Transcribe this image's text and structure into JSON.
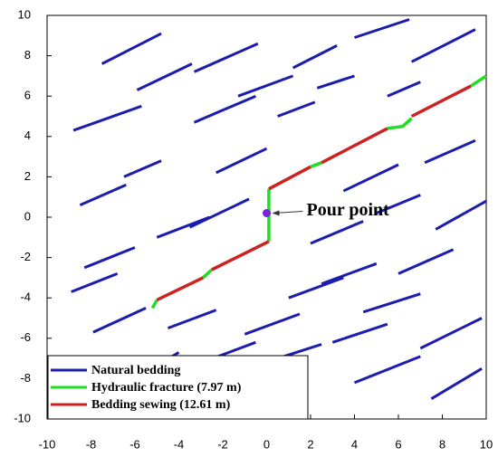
{
  "chart_data": {
    "type": "line",
    "xlim": [
      -10,
      10
    ],
    "ylim": [
      -10,
      10
    ],
    "xticks": [
      -10,
      -8,
      -6,
      -4,
      -2,
      0,
      2,
      4,
      6,
      8,
      10
    ],
    "yticks": [
      -10,
      -8,
      -6,
      -4,
      -2,
      0,
      2,
      4,
      6,
      8,
      10
    ],
    "grid": false,
    "legend": "lower left",
    "series": [
      {
        "name": "Natural bedding",
        "color": "#1c1cae",
        "x": [
          -7.5,
          -4.8,
          null,
          -3.3,
          -0.4,
          null,
          1.2,
          3.2,
          null,
          4.0,
          6.5,
          null,
          6.6,
          9.5,
          null,
          -5.9,
          -3.4,
          null,
          -1.3,
          1.2,
          null,
          2.3,
          4.0,
          null,
          5.5,
          7.0,
          null,
          -8.8,
          -5.7,
          null,
          -3.3,
          -0.5,
          null,
          0.5,
          2.2,
          null,
          -6.5,
          -4.8,
          null,
          -2.3,
          0.0,
          null,
          3.5,
          6.0,
          null,
          7.2,
          9.5,
          null,
          -8.5,
          -6.4,
          null,
          -3.5,
          -0.8,
          null,
          2.0,
          4.4,
          null,
          5.0,
          7.0,
          null,
          7.7,
          10.0,
          null,
          -8.3,
          -6.0,
          null,
          -5.0,
          -2.6,
          null,
          2.5,
          5.0,
          null,
          6.0,
          8.5,
          null,
          -8.9,
          -6.8,
          null,
          -7.9,
          -5.5,
          null,
          1.0,
          3.5,
          null,
          4.4,
          7.0,
          null,
          -4.5,
          -2.3,
          null,
          -1.0,
          1.5,
          null,
          3.0,
          5.5,
          null,
          7.0,
          9.8,
          null,
          -3.2,
          -0.5,
          null,
          0.5,
          2.5,
          null,
          4.0,
          7.0,
          null,
          7.5,
          9.8,
          null,
          -6.0,
          -4.0
        ],
        "values": [
          7.6,
          9.1,
          null,
          7.2,
          8.6,
          null,
          7.4,
          8.5,
          null,
          8.9,
          9.8,
          null,
          7.7,
          9.3,
          null,
          6.3,
          7.6,
          null,
          6.0,
          7.0,
          null,
          6.4,
          7.0,
          null,
          6.0,
          6.7,
          null,
          4.3,
          5.5,
          null,
          4.7,
          6.0,
          null,
          5.0,
          5.7,
          null,
          2.0,
          2.8,
          null,
          2.2,
          3.4,
          null,
          1.3,
          2.6,
          null,
          2.7,
          3.8,
          null,
          0.6,
          1.6,
          null,
          -0.5,
          0.9,
          null,
          -1.3,
          -0.2,
          null,
          0.2,
          1.1,
          null,
          -0.6,
          0.8,
          null,
          -2.5,
          -1.5,
          null,
          -1.0,
          0.0,
          null,
          -3.3,
          -2.3,
          null,
          -2.8,
          -1.6,
          null,
          -3.7,
          -2.8,
          null,
          -5.7,
          -4.5,
          null,
          -4.0,
          -3.0,
          null,
          -4.7,
          -3.8,
          null,
          -5.5,
          -4.6,
          null,
          -5.8,
          -4.8,
          null,
          -6.2,
          -5.3,
          null,
          -6.5,
          -5.0,
          null,
          -7.3,
          -6.2,
          null,
          -7.0,
          -6.3,
          null,
          -8.2,
          -6.9,
          null,
          -9.0,
          -7.5,
          null,
          -8.0,
          -6.7
        ]
      },
      {
        "name": "Hydraulic fracture (7.97 m)",
        "color": "#22dd22",
        "x": [
          -5.2,
          -5.0,
          null,
          -2.9,
          -2.5,
          null,
          0.1,
          0.1,
          0.1,
          null,
          2.0,
          2.5,
          null,
          5.5,
          6.2,
          6.6,
          null,
          9.3,
          10.0
        ],
        "values": [
          -4.5,
          -4.1,
          null,
          -3.0,
          -2.6,
          null,
          -1.2,
          0.2,
          1.4,
          null,
          2.5,
          2.7,
          null,
          4.4,
          4.5,
          4.9,
          null,
          6.5,
          7.0
        ]
      },
      {
        "name": "Bedding sewing (12.61 m)",
        "color": "#cc2222",
        "x": [
          -5.0,
          -2.9,
          null,
          -2.5,
          0.1,
          null,
          0.1,
          2.0,
          null,
          2.5,
          5.5,
          null,
          6.6,
          9.3
        ],
        "values": [
          -4.1,
          -3.0,
          null,
          -2.6,
          -1.2,
          null,
          1.4,
          2.5,
          null,
          2.7,
          4.4,
          null,
          5.0,
          6.5
        ]
      }
    ],
    "pour_point": {
      "label": "Pour point",
      "x": 0,
      "y": 0.2,
      "color": "#7a22dd"
    }
  }
}
